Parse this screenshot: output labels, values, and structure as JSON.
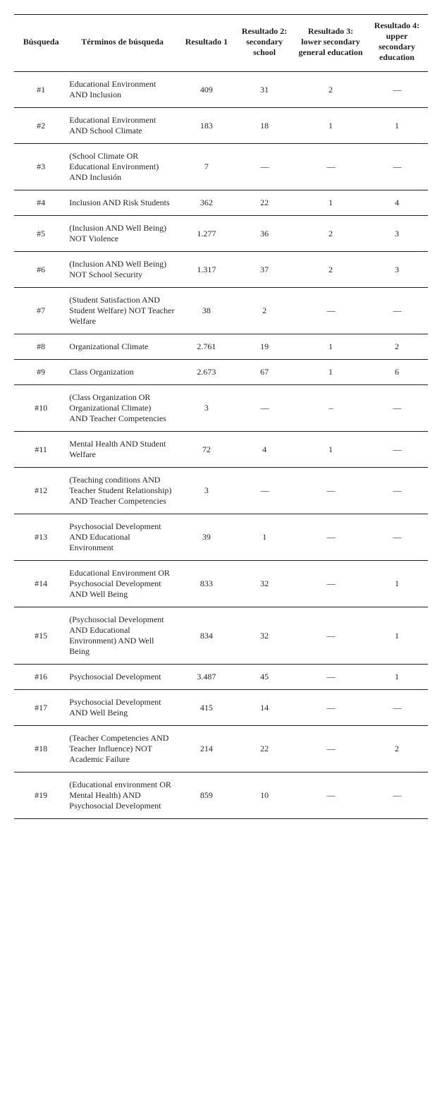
{
  "table": {
    "headers": {
      "search": "Búsqueda",
      "terms": "Términos de búsqueda",
      "r1": "Resultado 1",
      "r2": "Resultado 2: secondary school",
      "r3": "Resultado 3: lower secondary general education",
      "r4": "Resultado 4: upper secondary education"
    },
    "empty": "—",
    "rows": [
      {
        "search": "#1",
        "terms": "Educational Environment AND Inclusion",
        "r1": "409",
        "r2": "31",
        "r3": "2",
        "r4": "—"
      },
      {
        "search": "#2",
        "terms": "Educational Environment AND School Climate",
        "r1": "183",
        "r2": "18",
        "r3": "1",
        "r4": "1"
      },
      {
        "search": "#3",
        "terms": "(School Climate OR Educational Environment) AND Inclusión",
        "r1": "7",
        "r2": "—",
        "r3": "—",
        "r4": "—"
      },
      {
        "search": "#4",
        "terms": "Inclusion AND Risk Students",
        "r1": "362",
        "r2": "22",
        "r3": "1",
        "r4": "4"
      },
      {
        "search": "#5",
        "terms": "(Inclusion AND Well Being) NOT Violence",
        "r1": "1.277",
        "r2": "36",
        "r3": "2",
        "r4": "3"
      },
      {
        "search": "#6",
        "terms": "(Inclusion AND Well Being) NOT School Security",
        "r1": "1.317",
        "r2": "37",
        "r3": "2",
        "r4": "3"
      },
      {
        "search": "#7",
        "terms": "(Student Satisfaction AND Student Welfare) NOT Teacher Welfare",
        "r1": "38",
        "r2": "2",
        "r3": "—",
        "r4": "—"
      },
      {
        "search": "#8",
        "terms": "Organizational Climate",
        "r1": "2.761",
        "r2": "19",
        "r3": "1",
        "r4": "2"
      },
      {
        "search": "#9",
        "terms": "Class Organization",
        "r1": "2.673",
        "r2": "67",
        "r3": "1",
        "r4": "6"
      },
      {
        "search": "#10",
        "terms": "(Class Organization OR Organizational Climate)\nAND Teacher Competencies",
        "r1": "3",
        "r2": "—",
        "r3": "–",
        "r4": "—"
      },
      {
        "search": "#11",
        "terms": "Mental Health AND Student Welfare",
        "r1": "72",
        "r2": "4",
        "r3": "1",
        "r4": "—"
      },
      {
        "search": "#12",
        "terms": "(Teaching conditions AND Teacher Student Relationship)\nAND Teacher Competencies",
        "r1": "3",
        "r2": "—",
        "r3": "—",
        "r4": "—"
      },
      {
        "search": "#13",
        "terms": "Psychosocial Development AND Educational Environment",
        "r1": "39",
        "r2": "1",
        "r3": "—",
        "r4": "—"
      },
      {
        "search": "#14",
        "terms": "Educational Environment OR Psychosocial Development AND Well Being",
        "r1": "833",
        "r2": "32",
        "r3": "—",
        "r4": "1"
      },
      {
        "search": "#15",
        "terms": "(Psychosocial Development AND Educational Environment) AND Well Being",
        "r1": "834",
        "r2": "32",
        "r3": "—",
        "r4": "1"
      },
      {
        "search": "#16",
        "terms": "Psychosocial Development",
        "r1": "3.487",
        "r2": "45",
        "r3": "—",
        "r4": "1"
      },
      {
        "search": "#17",
        "terms": "Psychosocial Development AND Well Being",
        "r1": "415",
        "r2": "14",
        "r3": "—",
        "r4": "—"
      },
      {
        "search": "#18",
        "terms": "(Teacher Competencies AND Teacher Influence) NOT Academic Failure",
        "r1": "214",
        "r2": "22",
        "r3": "—",
        "r4": "2"
      },
      {
        "search": "#19",
        "terms": "(Educational environment OR Mental Health) AND Psychosocial Development",
        "r1": "859",
        "r2": "10",
        "r3": "—",
        "r4": "—"
      }
    ],
    "colors": {
      "text": "#231f20",
      "border": "#231f20",
      "background": "#ffffff"
    },
    "fonts": {
      "family": "Times New Roman",
      "header_size_pt": 9,
      "body_size_pt": 9,
      "header_weight": "bold",
      "body_weight": "normal"
    }
  }
}
